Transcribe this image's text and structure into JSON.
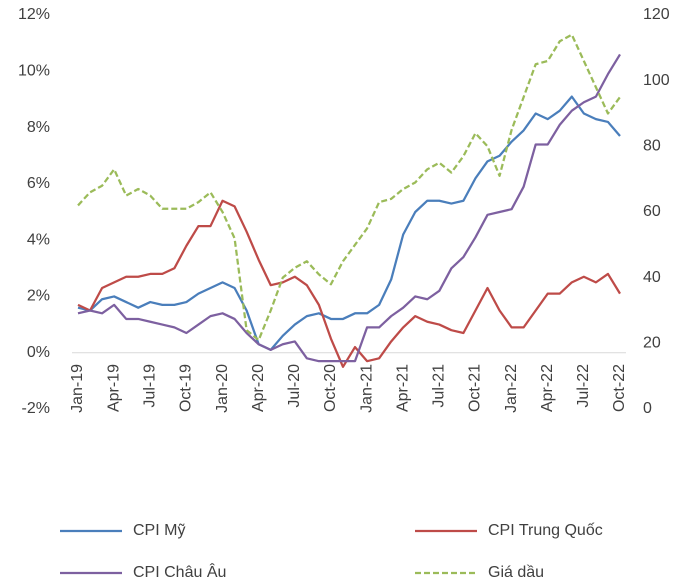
{
  "chart_data": {
    "type": "line",
    "categories": [
      "Jan-19",
      null,
      null,
      "Apr-19",
      null,
      null,
      "Jul-19",
      null,
      null,
      "Oct-19",
      null,
      null,
      "Jan-20",
      null,
      null,
      "Apr-20",
      null,
      null,
      "Jul-20",
      null,
      null,
      "Oct-20",
      null,
      null,
      "Jan-21",
      null,
      null,
      "Apr-21",
      null,
      null,
      "Jul-21",
      null,
      null,
      "Oct-21",
      null,
      null,
      "Jan-22",
      null,
      null,
      "Apr-22",
      null,
      null,
      "Jul-22",
      null,
      null,
      "Oct-22"
    ],
    "ylim": [
      -2,
      12
    ],
    "yticks": [
      {
        "value": -2,
        "label": "-2%"
      },
      {
        "value": 0,
        "label": "0%"
      },
      {
        "value": 2,
        "label": "2%"
      },
      {
        "value": 4,
        "label": "4%"
      },
      {
        "value": 6,
        "label": "6%"
      },
      {
        "value": 8,
        "label": "8%"
      },
      {
        "value": 10,
        "label": "10%"
      },
      {
        "value": 12,
        "label": "12%"
      }
    ],
    "y2lim": [
      0,
      120
    ],
    "y2ticks": [
      0,
      20,
      40,
      60,
      80,
      100,
      120
    ],
    "grid": false,
    "legend": "bottom",
    "series": [
      {
        "name": "CPI Mỹ",
        "color": "#4a7ebb",
        "dash": false,
        "values": [
          1.6,
          1.5,
          1.9,
          2.0,
          1.8,
          1.6,
          1.8,
          1.7,
          1.7,
          1.8,
          2.1,
          2.3,
          2.5,
          2.3,
          1.5,
          0.3,
          0.1,
          0.6,
          1.0,
          1.3,
          1.4,
          1.2,
          1.2,
          1.4,
          1.4,
          1.7,
          2.6,
          4.2,
          5.0,
          5.4,
          5.4,
          5.3,
          5.4,
          6.2,
          6.8,
          7.0,
          7.5,
          7.9,
          8.5,
          8.3,
          8.6,
          9.1,
          8.5,
          8.3,
          8.2,
          7.7
        ]
      },
      {
        "name": "CPI Trung Quốc",
        "color": "#be4b48",
        "dash": false,
        "values": [
          1.7,
          1.5,
          2.3,
          2.5,
          2.7,
          2.7,
          2.8,
          2.8,
          3.0,
          3.8,
          4.5,
          4.5,
          5.4,
          5.2,
          4.3,
          3.3,
          2.4,
          2.5,
          2.7,
          2.4,
          1.7,
          0.5,
          -0.5,
          0.2,
          -0.3,
          -0.2,
          0.4,
          0.9,
          1.3,
          1.1,
          1.0,
          0.8,
          0.7,
          1.5,
          2.3,
          1.5,
          0.9,
          0.9,
          1.5,
          2.1,
          2.1,
          2.5,
          2.7,
          2.5,
          2.8,
          2.1
        ]
      },
      {
        "name": "CPI Châu Âu",
        "color": "#7d60a0",
        "dash": false,
        "values": [
          1.4,
          1.5,
          1.4,
          1.7,
          1.2,
          1.2,
          1.1,
          1.0,
          0.9,
          0.7,
          1.0,
          1.3,
          1.4,
          1.2,
          0.7,
          0.3,
          0.1,
          0.3,
          0.4,
          -0.2,
          -0.3,
          -0.3,
          -0.3,
          -0.3,
          0.9,
          0.9,
          1.3,
          1.6,
          2.0,
          1.9,
          2.2,
          3.0,
          3.4,
          4.1,
          4.9,
          5.0,
          5.1,
          5.9,
          7.4,
          7.4,
          8.1,
          8.6,
          8.9,
          9.1,
          9.9,
          10.6
        ]
      },
      {
        "name": "Giá dầu",
        "color": "#9bbb59",
        "dash": true,
        "axis": "y2",
        "values": [
          62,
          66,
          68,
          73,
          65,
          67,
          65,
          61,
          61,
          61,
          63,
          66,
          60,
          52,
          24,
          21,
          30,
          40,
          43,
          45,
          41,
          38,
          45,
          50,
          55,
          63,
          64,
          67,
          69,
          73,
          75,
          72,
          77,
          84,
          80,
          71,
          85,
          95,
          105,
          106,
          112,
          114,
          106,
          98,
          90,
          95
        ]
      }
    ]
  }
}
